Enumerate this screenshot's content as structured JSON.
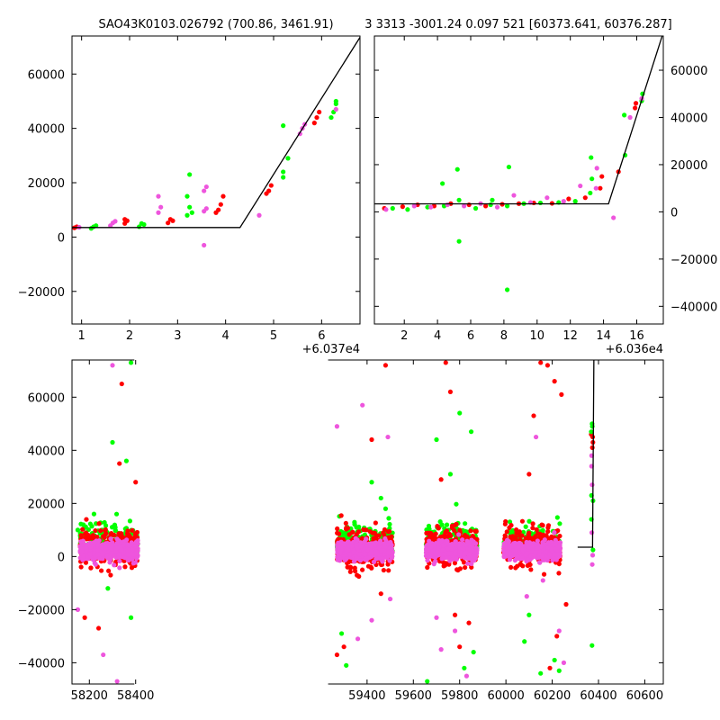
{
  "title_left": "SAO43K0103.026792 (700.86, 3461.91)",
  "title_right": "3 3313 -3001.24 0.097 521 [60373.641, 60376.287]",
  "colors": {
    "green": "#00ff00",
    "red": "#ff0000",
    "magenta": "#ee55dd",
    "model": "#000000"
  },
  "chart_data": [
    {
      "type": "scatter",
      "panel": "top-left",
      "xlim": [
        60370.8,
        60376.8
      ],
      "ylim": [
        -32000,
        74000
      ],
      "xticks": [
        1,
        2,
        3,
        4,
        5,
        6
      ],
      "x_offset_label": "+6.037e4",
      "yticks": [
        -20000,
        0,
        20000,
        40000,
        60000
      ],
      "ytick_side": "left",
      "model_line": [
        [
          60370.8,
          3500
        ],
        [
          60374.3,
          3500
        ],
        [
          60376.8,
          73500
        ]
      ],
      "series": [
        {
          "color": "green",
          "points": [
            [
              60371.2,
              3200
            ],
            [
              60371.25,
              3800
            ],
            [
              60371.3,
              4200
            ],
            [
              60372.2,
              3800
            ],
            [
              60372.3,
              4600
            ],
            [
              60372.25,
              5000
            ],
            [
              60373.2,
              8000
            ],
            [
              60373.25,
              11000
            ],
            [
              60373.2,
              15000
            ],
            [
              60373.25,
              23000
            ],
            [
              60373.3,
              9000
            ],
            [
              60375.2,
              22000
            ],
            [
              60375.2,
              24000
            ],
            [
              60375.3,
              29000
            ],
            [
              60375.2,
              41000
            ],
            [
              60376.2,
              44000
            ],
            [
              60376.25,
              46000
            ],
            [
              60376.3,
              49000
            ],
            [
              60376.3,
              50000
            ]
          ]
        },
        {
          "color": "red",
          "points": [
            [
              60370.85,
              3400
            ],
            [
              60370.9,
              3800
            ],
            [
              60371.9,
              5000
            ],
            [
              60371.95,
              6000
            ],
            [
              60371.9,
              6500
            ],
            [
              60372.8,
              5200
            ],
            [
              60372.9,
              6000
            ],
            [
              60372.85,
              6500
            ],
            [
              60373.8,
              9000
            ],
            [
              60373.85,
              10000
            ],
            [
              60373.9,
              12000
            ],
            [
              60373.95,
              15000
            ],
            [
              60374.85,
              16000
            ],
            [
              60374.9,
              17000
            ],
            [
              60374.95,
              19000
            ],
            [
              60375.85,
              42000
            ],
            [
              60375.9,
              44000
            ],
            [
              60375.95,
              46000
            ]
          ]
        },
        {
          "color": "magenta",
          "points": [
            [
              60370.95,
              3600
            ],
            [
              60371.6,
              4200
            ],
            [
              60371.65,
              5200
            ],
            [
              60371.7,
              5800
            ],
            [
              60372.6,
              9000
            ],
            [
              60372.65,
              11000
            ],
            [
              60372.6,
              15000
            ],
            [
              60373.55,
              9500
            ],
            [
              60373.6,
              10500
            ],
            [
              60373.55,
              17000
            ],
            [
              60373.6,
              18500
            ],
            [
              60373.55,
              -3000
            ],
            [
              60374.7,
              8000
            ],
            [
              60375.55,
              38000
            ],
            [
              60375.6,
              40000
            ],
            [
              60375.65,
              41500
            ],
            [
              60376.3,
              47000
            ]
          ]
        }
      ]
    },
    {
      "type": "scatter",
      "panel": "top-right",
      "xlim": [
        60360.2,
        60377.6
      ],
      "ylim": [
        -47500,
        74500
      ],
      "xticks": [
        2,
        4,
        6,
        8,
        10,
        12,
        14,
        16
      ],
      "x_offset_label": "+6.036e4",
      "yticks": [
        -40000,
        -20000,
        0,
        20000,
        40000,
        60000
      ],
      "ytick_side": "right",
      "model_line": [
        [
          60360.2,
          3400
        ],
        [
          60374.3,
          3400
        ],
        [
          60377.6,
          76000
        ]
      ],
      "series": [
        {
          "color": "green",
          "points": [
            [
              60361.3,
              1500
            ],
            [
              60362.2,
              1000
            ],
            [
              60363.4,
              2000
            ],
            [
              60364.3,
              12000
            ],
            [
              60364.4,
              2500
            ],
            [
              60365.2,
              18000
            ],
            [
              60365.3,
              -12500
            ],
            [
              60365.3,
              5000
            ],
            [
              60366.3,
              1500
            ],
            [
              60367.2,
              3000
            ],
            [
              60367.3,
              5000
            ],
            [
              60368.2,
              2500
            ],
            [
              60368.3,
              19000
            ],
            [
              60368.2,
              -33000
            ],
            [
              60369.2,
              3500
            ],
            [
              60370.2,
              3800
            ],
            [
              60371.3,
              4000
            ],
            [
              60372.3,
              4500
            ],
            [
              60373.2,
              8000
            ],
            [
              60373.3,
              14000
            ],
            [
              60373.25,
              23000
            ],
            [
              60375.3,
              24000
            ],
            [
              60375.25,
              41000
            ],
            [
              60376.3,
              47000
            ],
            [
              60376.35,
              50000
            ]
          ]
        },
        {
          "color": "red",
          "points": [
            [
              60360.8,
              1500
            ],
            [
              60361.9,
              2200
            ],
            [
              60362.8,
              3000
            ],
            [
              60363.8,
              2500
            ],
            [
              60364.8,
              3500
            ],
            [
              60365.9,
              3000
            ],
            [
              60366.9,
              2500
            ],
            [
              60367.9,
              3200
            ],
            [
              60368.9,
              3500
            ],
            [
              60369.8,
              3800
            ],
            [
              60370.9,
              3600
            ],
            [
              60371.9,
              5500
            ],
            [
              60372.9,
              6000
            ],
            [
              60373.8,
              10000
            ],
            [
              60373.9,
              15000
            ],
            [
              60374.9,
              17000
            ],
            [
              60375.9,
              44000
            ],
            [
              60375.95,
              46000
            ]
          ]
        },
        {
          "color": "magenta",
          "points": [
            [
              60360.9,
              1000
            ],
            [
              60362.6,
              2500
            ],
            [
              60363.6,
              2000
            ],
            [
              60364.6,
              3000
            ],
            [
              60365.6,
              2500
            ],
            [
              60366.6,
              3500
            ],
            [
              60367.6,
              2000
            ],
            [
              60368.6,
              7000
            ],
            [
              60369.6,
              4000
            ],
            [
              60370.6,
              6000
            ],
            [
              60371.6,
              4500
            ],
            [
              60372.6,
              11000
            ],
            [
              60373.6,
              18500
            ],
            [
              60373.55,
              10000
            ],
            [
              60374.6,
              -2500
            ],
            [
              60375.6,
              40000
            ],
            [
              60376.3,
              48000
            ]
          ]
        }
      ]
    },
    {
      "type": "scatter",
      "panel": "bottom",
      "xlim": [
        58125,
        60680
      ],
      "ylim": [
        -48000,
        74000
      ],
      "xticks": [
        58200,
        58400,
        59400,
        59600,
        59800,
        60000,
        60200,
        60400,
        60600
      ],
      "yticks": [
        -40000,
        -20000,
        0,
        20000,
        40000,
        60000
      ],
      "ytick_side": "left",
      "break_gap": [
        58445,
        59255
      ],
      "model_line": [
        [
          60310,
          3500
        ],
        [
          60374.3,
          3500
        ],
        [
          60380,
          74000
        ]
      ],
      "season_ranges": [
        [
          58160,
          58410
        ],
        [
          59270,
          59510
        ],
        [
          59655,
          59875
        ],
        [
          59990,
          60235
        ],
        [
          60368,
          60378
        ]
      ],
      "outliers": [
        {
          "color": "green",
          "points": [
            [
              58300,
              43000
            ],
            [
              58360,
              36000
            ],
            [
              58380,
              73000
            ],
            [
              58220,
              16000
            ],
            [
              58150,
              10000
            ],
            [
              58280,
              -12000
            ],
            [
              58380,
              -23000
            ],
            [
              59310,
              -41000
            ],
            [
              59290,
              -29000
            ],
            [
              59420,
              28000
            ],
            [
              59460,
              22000
            ],
            [
              59480,
              18000
            ],
            [
              59700,
              44000
            ],
            [
              59800,
              54000
            ],
            [
              59850,
              47000
            ],
            [
              59760,
              31000
            ],
            [
              59820,
              -42000
            ],
            [
              59860,
              -36000
            ],
            [
              59660,
              -47000
            ],
            [
              60100,
              -22000
            ],
            [
              60210,
              -39000
            ],
            [
              60150,
              -44000
            ],
            [
              60080,
              -32000
            ],
            [
              60230,
              -43000
            ],
            [
              60372,
              -33500
            ]
          ]
        },
        {
          "color": "red",
          "points": [
            [
              58180,
              -23000
            ],
            [
              58240,
              -27000
            ],
            [
              58340,
              65000
            ],
            [
              58330,
              35000
            ],
            [
              58400,
              28000
            ],
            [
              59270,
              -37000
            ],
            [
              59300,
              -34000
            ],
            [
              59420,
              44000
            ],
            [
              59460,
              -14000
            ],
            [
              59480,
              72000
            ],
            [
              59740,
              73000
            ],
            [
              59760,
              62000
            ],
            [
              59720,
              29000
            ],
            [
              59800,
              -34000
            ],
            [
              59780,
              -22000
            ],
            [
              59840,
              -25000
            ],
            [
              60100,
              31000
            ],
            [
              60150,
              73000
            ],
            [
              60180,
              72000
            ],
            [
              60210,
              66000
            ],
            [
              60240,
              61000
            ],
            [
              60190,
              -42000
            ],
            [
              60220,
              -30000
            ],
            [
              60260,
              -18000
            ],
            [
              60120,
              53000
            ]
          ]
        },
        {
          "color": "magenta",
          "points": [
            [
              58300,
              72000
            ],
            [
              58320,
              -47000
            ],
            [
              58260,
              -37000
            ],
            [
              58150,
              -20000
            ],
            [
              59270,
              49000
            ],
            [
              59380,
              57000
            ],
            [
              59490,
              45000
            ],
            [
              59360,
              -31000
            ],
            [
              59420,
              -24000
            ],
            [
              59500,
              -16000
            ],
            [
              59700,
              -23000
            ],
            [
              59720,
              -35000
            ],
            [
              59780,
              -28000
            ],
            [
              59830,
              -45000
            ],
            [
              60090,
              -15000
            ],
            [
              60160,
              -9000
            ],
            [
              60230,
              -28000
            ],
            [
              60250,
              -40000
            ],
            [
              60130,
              45000
            ]
          ]
        }
      ]
    }
  ]
}
